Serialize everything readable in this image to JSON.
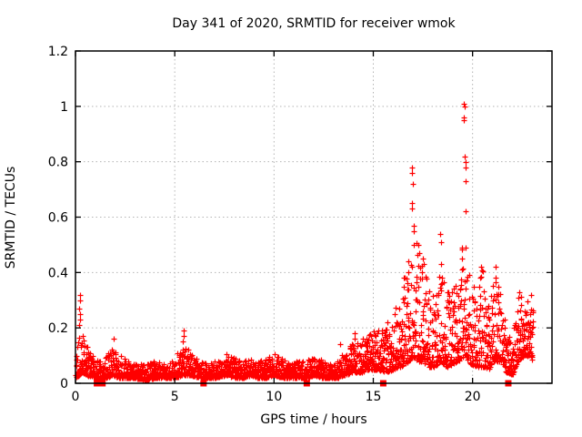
{
  "chart_data": {
    "type": "scatter",
    "title": "Day 341 of 2020, SRMTID for receiver wmok",
    "xlabel": "GPS time / hours",
    "ylabel": "SRMTID / TECUs",
    "xlim": [
      0,
      24
    ],
    "ylim": [
      0,
      1.2
    ],
    "xticks": [
      0,
      5,
      10,
      15,
      20
    ],
    "yticks": [
      0,
      0.2,
      0.4,
      0.6,
      0.8,
      1,
      1.2
    ],
    "grid": true,
    "legend": "none",
    "marker": "plus",
    "marker_color": "#ff0000",
    "grid_color": "#b4b4b4",
    "axis_color": "#000000",
    "background_color": "#ffffff",
    "data_x_start": 0.02,
    "data_x_end": 23.05,
    "points_per_hour": 115,
    "seed": 2020341,
    "band": [
      {
        "x": 0.02,
        "lo": 0.02,
        "hi": 0.1
      },
      {
        "x": 0.2,
        "lo": 0.03,
        "hi": 0.2
      },
      {
        "x": 0.35,
        "lo": 0.04,
        "hi": 0.18
      },
      {
        "x": 0.6,
        "lo": 0.03,
        "hi": 0.14
      },
      {
        "x": 0.9,
        "lo": 0.02,
        "hi": 0.1
      },
      {
        "x": 1.2,
        "lo": 0.02,
        "hi": 0.08
      },
      {
        "x": 1.6,
        "lo": 0.02,
        "hi": 0.1
      },
      {
        "x": 1.9,
        "lo": 0.03,
        "hi": 0.16
      },
      {
        "x": 2.2,
        "lo": 0.02,
        "hi": 0.12
      },
      {
        "x": 2.6,
        "lo": 0.02,
        "hi": 0.08
      },
      {
        "x": 3.0,
        "lo": 0.02,
        "hi": 0.07
      },
      {
        "x": 3.5,
        "lo": 0.01,
        "hi": 0.07
      },
      {
        "x": 4.0,
        "lo": 0.02,
        "hi": 0.08
      },
      {
        "x": 4.5,
        "lo": 0.02,
        "hi": 0.07
      },
      {
        "x": 5.0,
        "lo": 0.02,
        "hi": 0.09
      },
      {
        "x": 5.4,
        "lo": 0.03,
        "hi": 0.14
      },
      {
        "x": 5.8,
        "lo": 0.03,
        "hi": 0.12
      },
      {
        "x": 6.2,
        "lo": 0.02,
        "hi": 0.09
      },
      {
        "x": 6.6,
        "lo": 0.02,
        "hi": 0.07
      },
      {
        "x": 7.0,
        "lo": 0.02,
        "hi": 0.08
      },
      {
        "x": 7.6,
        "lo": 0.03,
        "hi": 0.11
      },
      {
        "x": 8.0,
        "lo": 0.02,
        "hi": 0.09
      },
      {
        "x": 8.5,
        "lo": 0.02,
        "hi": 0.08
      },
      {
        "x": 8.8,
        "lo": 0.03,
        "hi": 0.1
      },
      {
        "x": 9.2,
        "lo": 0.02,
        "hi": 0.08
      },
      {
        "x": 9.6,
        "lo": 0.02,
        "hi": 0.09
      },
      {
        "x": 10.0,
        "lo": 0.03,
        "hi": 0.11
      },
      {
        "x": 10.4,
        "lo": 0.02,
        "hi": 0.09
      },
      {
        "x": 10.8,
        "lo": 0.02,
        "hi": 0.07
      },
      {
        "x": 11.2,
        "lo": 0.02,
        "hi": 0.08
      },
      {
        "x": 11.6,
        "lo": 0.02,
        "hi": 0.08
      },
      {
        "x": 12.0,
        "lo": 0.03,
        "hi": 0.1
      },
      {
        "x": 12.4,
        "lo": 0.02,
        "hi": 0.09
      },
      {
        "x": 12.8,
        "lo": 0.02,
        "hi": 0.07
      },
      {
        "x": 13.2,
        "lo": 0.02,
        "hi": 0.08
      },
      {
        "x": 13.6,
        "lo": 0.03,
        "hi": 0.12
      },
      {
        "x": 14.0,
        "lo": 0.04,
        "hi": 0.15
      },
      {
        "x": 14.4,
        "lo": 0.04,
        "hi": 0.16
      },
      {
        "x": 14.8,
        "lo": 0.05,
        "hi": 0.18
      },
      {
        "x": 15.2,
        "lo": 0.05,
        "hi": 0.2
      },
      {
        "x": 15.6,
        "lo": 0.04,
        "hi": 0.22
      },
      {
        "x": 16.0,
        "lo": 0.05,
        "hi": 0.25
      },
      {
        "x": 16.4,
        "lo": 0.06,
        "hi": 0.33
      },
      {
        "x": 16.8,
        "lo": 0.08,
        "hi": 0.45
      },
      {
        "x": 17.0,
        "lo": 0.1,
        "hi": 0.55
      },
      {
        "x": 17.2,
        "lo": 0.08,
        "hi": 0.5
      },
      {
        "x": 17.5,
        "lo": 0.08,
        "hi": 0.45
      },
      {
        "x": 17.8,
        "lo": 0.06,
        "hi": 0.35
      },
      {
        "x": 18.1,
        "lo": 0.06,
        "hi": 0.3
      },
      {
        "x": 18.4,
        "lo": 0.08,
        "hi": 0.43
      },
      {
        "x": 18.7,
        "lo": 0.06,
        "hi": 0.33
      },
      {
        "x": 19.0,
        "lo": 0.07,
        "hi": 0.35
      },
      {
        "x": 19.3,
        "lo": 0.08,
        "hi": 0.4
      },
      {
        "x": 19.6,
        "lo": 0.1,
        "hi": 0.55
      },
      {
        "x": 19.9,
        "lo": 0.07,
        "hi": 0.35
      },
      {
        "x": 20.2,
        "lo": 0.06,
        "hi": 0.38
      },
      {
        "x": 20.5,
        "lo": 0.06,
        "hi": 0.42
      },
      {
        "x": 20.8,
        "lo": 0.05,
        "hi": 0.28
      },
      {
        "x": 21.1,
        "lo": 0.08,
        "hi": 0.38
      },
      {
        "x": 21.4,
        "lo": 0.08,
        "hi": 0.35
      },
      {
        "x": 21.7,
        "lo": 0.04,
        "hi": 0.22
      },
      {
        "x": 22.0,
        "lo": 0.03,
        "hi": 0.15
      },
      {
        "x": 22.3,
        "lo": 0.08,
        "hi": 0.33
      },
      {
        "x": 22.6,
        "lo": 0.1,
        "hi": 0.3
      },
      {
        "x": 22.9,
        "lo": 0.1,
        "hi": 0.32
      },
      {
        "x": 23.05,
        "lo": 0.08,
        "hi": 0.28
      }
    ],
    "peaks": [
      {
        "x": 0.22,
        "values": [
          0.32,
          0.3,
          0.27,
          0.25,
          0.23,
          0.21
        ]
      },
      {
        "x": 1.9,
        "values": [
          0.16
        ]
      },
      {
        "x": 5.45,
        "values": [
          0.19,
          0.17,
          0.15
        ]
      },
      {
        "x": 13.35,
        "values": [
          0.14
        ]
      },
      {
        "x": 14.05,
        "values": [
          0.18,
          0.16
        ]
      },
      {
        "x": 15.7,
        "values": [
          0.22
        ]
      },
      {
        "x": 16.1,
        "values": [
          0.25
        ]
      },
      {
        "x": 16.55,
        "values": [
          0.38,
          0.35
        ]
      },
      {
        "x": 16.75,
        "values": [
          0.44,
          0.4
        ]
      },
      {
        "x": 16.95,
        "values": [
          0.78,
          0.76,
          0.72,
          0.65,
          0.63
        ]
      },
      {
        "x": 17.05,
        "values": [
          0.57,
          0.55,
          0.5
        ]
      },
      {
        "x": 17.3,
        "values": [
          0.5,
          0.47
        ]
      },
      {
        "x": 17.5,
        "values": [
          0.45,
          0.43
        ]
      },
      {
        "x": 18.4,
        "values": [
          0.54,
          0.51,
          0.43
        ]
      },
      {
        "x": 19.45,
        "values": [
          0.49,
          0.45
        ]
      },
      {
        "x": 19.6,
        "values": [
          1.01,
          1.0,
          0.96,
          0.95,
          0.82
        ]
      },
      {
        "x": 19.65,
        "values": [
          0.8,
          0.78,
          0.73,
          0.62
        ]
      },
      {
        "x": 20.4,
        "values": [
          0.42,
          0.38
        ]
      },
      {
        "x": 21.15,
        "values": [
          0.42,
          0.38
        ]
      },
      {
        "x": 21.3,
        "values": [
          0.35
        ]
      },
      {
        "x": 22.4,
        "values": [
          0.33
        ]
      },
      {
        "x": 22.9,
        "values": [
          0.32
        ]
      }
    ],
    "gap_markers_x": [
      1.08,
      1.22,
      1.36,
      6.45,
      11.65,
      15.5,
      21.8
    ]
  }
}
